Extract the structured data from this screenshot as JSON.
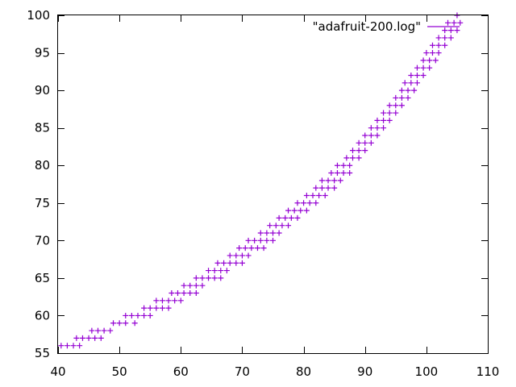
{
  "chart_data": {
    "type": "scatter",
    "title": "",
    "xlabel": "",
    "ylabel": "",
    "xlim": [
      40,
      110
    ],
    "ylim": [
      55,
      100
    ],
    "xticks": [
      40,
      50,
      60,
      70,
      80,
      90,
      100,
      110
    ],
    "yticks": [
      55,
      60,
      65,
      70,
      75,
      80,
      85,
      90,
      95,
      100
    ],
    "grid": false,
    "legend_position": "top-right",
    "marker": "+",
    "series": [
      {
        "name": "\"adafruit-200.log\"",
        "color": "#9400d3",
        "points": [
          [
            40.5,
            56
          ],
          [
            41.5,
            56
          ],
          [
            42.5,
            56
          ],
          [
            43.5,
            56
          ],
          [
            43,
            57
          ],
          [
            44,
            57
          ],
          [
            45,
            57
          ],
          [
            46,
            57
          ],
          [
            47,
            57
          ],
          [
            45.5,
            58
          ],
          [
            46.5,
            58
          ],
          [
            47.5,
            58
          ],
          [
            48.5,
            58
          ],
          [
            49,
            59
          ],
          [
            50,
            59
          ],
          [
            51,
            59
          ],
          [
            52.5,
            59
          ],
          [
            51,
            60
          ],
          [
            52,
            60
          ],
          [
            53,
            60
          ],
          [
            54,
            60
          ],
          [
            55,
            60
          ],
          [
            54,
            61
          ],
          [
            55,
            61
          ],
          [
            56,
            61
          ],
          [
            57,
            61
          ],
          [
            58,
            61
          ],
          [
            56,
            62
          ],
          [
            57,
            62
          ],
          [
            58,
            62
          ],
          [
            59,
            62
          ],
          [
            60,
            62
          ],
          [
            58.5,
            63
          ],
          [
            59.5,
            63
          ],
          [
            60.5,
            63
          ],
          [
            61.5,
            63
          ],
          [
            62.5,
            63
          ],
          [
            60.5,
            64
          ],
          [
            61.5,
            64
          ],
          [
            62.5,
            64
          ],
          [
            63.5,
            64
          ],
          [
            62.5,
            65
          ],
          [
            63.5,
            65
          ],
          [
            64.5,
            65
          ],
          [
            65.5,
            65
          ],
          [
            66.5,
            65
          ],
          [
            64.5,
            66
          ],
          [
            65.5,
            66
          ],
          [
            66.5,
            66
          ],
          [
            67.5,
            66
          ],
          [
            66,
            67
          ],
          [
            67,
            67
          ],
          [
            68,
            67
          ],
          [
            69,
            67
          ],
          [
            70,
            67
          ],
          [
            68,
            68
          ],
          [
            69,
            68
          ],
          [
            70,
            68
          ],
          [
            71,
            68
          ],
          [
            69.5,
            69
          ],
          [
            70.5,
            69
          ],
          [
            71.5,
            69
          ],
          [
            72.5,
            69
          ],
          [
            73.5,
            69
          ],
          [
            71,
            70
          ],
          [
            72,
            70
          ],
          [
            73,
            70
          ],
          [
            74,
            70
          ],
          [
            75,
            70
          ],
          [
            73,
            71
          ],
          [
            74,
            71
          ],
          [
            75,
            71
          ],
          [
            76,
            71
          ],
          [
            74.5,
            72
          ],
          [
            75.5,
            72
          ],
          [
            76.5,
            72
          ],
          [
            77.5,
            72
          ],
          [
            76,
            73
          ],
          [
            77,
            73
          ],
          [
            78,
            73
          ],
          [
            79,
            73
          ],
          [
            77.5,
            74
          ],
          [
            78.5,
            74
          ],
          [
            79.5,
            74
          ],
          [
            80.5,
            74
          ],
          [
            79,
            75
          ],
          [
            80,
            75
          ],
          [
            81,
            75
          ],
          [
            82,
            75
          ],
          [
            80.5,
            76
          ],
          [
            81.5,
            76
          ],
          [
            82.5,
            76
          ],
          [
            83.5,
            76
          ],
          [
            82,
            77
          ],
          [
            83,
            77
          ],
          [
            84,
            77
          ],
          [
            85,
            77
          ],
          [
            83,
            78
          ],
          [
            84,
            78
          ],
          [
            85,
            78
          ],
          [
            86,
            78
          ],
          [
            84.5,
            79
          ],
          [
            85.5,
            79
          ],
          [
            86.5,
            79
          ],
          [
            87.5,
            79
          ],
          [
            85.5,
            80
          ],
          [
            86.5,
            80
          ],
          [
            87.5,
            80
          ],
          [
            87,
            81
          ],
          [
            88,
            81
          ],
          [
            89,
            81
          ],
          [
            88,
            82
          ],
          [
            89,
            82
          ],
          [
            90,
            82
          ],
          [
            89,
            83
          ],
          [
            90,
            83
          ],
          [
            91,
            83
          ],
          [
            90,
            84
          ],
          [
            91,
            84
          ],
          [
            92,
            84
          ],
          [
            91,
            85
          ],
          [
            92,
            85
          ],
          [
            93,
            85
          ],
          [
            92,
            86
          ],
          [
            93,
            86
          ],
          [
            94,
            86
          ],
          [
            93,
            87
          ],
          [
            94,
            87
          ],
          [
            95,
            87
          ],
          [
            94,
            88
          ],
          [
            95,
            88
          ],
          [
            96,
            88
          ],
          [
            95,
            89
          ],
          [
            96,
            89
          ],
          [
            97,
            89
          ],
          [
            96,
            90
          ],
          [
            97,
            90
          ],
          [
            98,
            90
          ],
          [
            96.5,
            91
          ],
          [
            97.5,
            91
          ],
          [
            98.5,
            91
          ],
          [
            97.5,
            92
          ],
          [
            98.5,
            92
          ],
          [
            99.5,
            92
          ],
          [
            98.5,
            93
          ],
          [
            99.5,
            93
          ],
          [
            100.5,
            93
          ],
          [
            99.5,
            94
          ],
          [
            100.5,
            94
          ],
          [
            101.5,
            94
          ],
          [
            100,
            95
          ],
          [
            101,
            95
          ],
          [
            102,
            95
          ],
          [
            101,
            96
          ],
          [
            102,
            96
          ],
          [
            103,
            96
          ],
          [
            102,
            97
          ],
          [
            103,
            97
          ],
          [
            104,
            97
          ],
          [
            103,
            98
          ],
          [
            104,
            98
          ],
          [
            105,
            98
          ],
          [
            103.5,
            99
          ],
          [
            104.5,
            99
          ],
          [
            105.5,
            99
          ],
          [
            105,
            100
          ]
        ]
      }
    ]
  }
}
